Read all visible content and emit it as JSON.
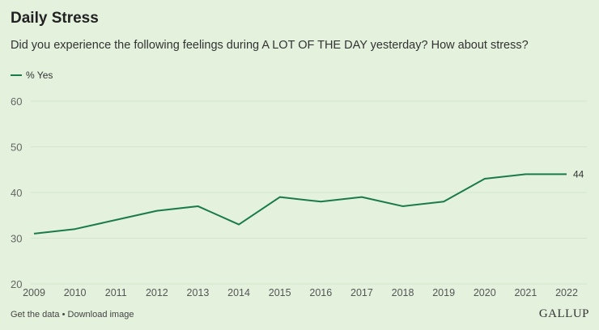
{
  "chart_data": {
    "type": "line",
    "title": "Daily Stress",
    "subtitle": "Did you experience the following feelings during A LOT OF THE DAY yesterday? How about stress?",
    "xlabel": "",
    "ylabel": "",
    "categories": [
      "2009",
      "2010",
      "2011",
      "2012",
      "2013",
      "2014",
      "2015",
      "2016",
      "2017",
      "2018",
      "2019",
      "2020",
      "2021",
      "2022"
    ],
    "series": [
      {
        "name": "% Yes",
        "values": [
          31,
          32,
          34,
          36,
          37,
          33,
          39,
          38,
          39,
          37,
          38,
          43,
          44,
          44
        ],
        "color": "#1a7a4a"
      }
    ],
    "yticks": [
      "20",
      "30",
      "40",
      "50",
      "60"
    ],
    "ylim": [
      20,
      60
    ],
    "grid": true,
    "legend": "top-left",
    "end_label": "44"
  },
  "footer": {
    "get_data": "Get the data",
    "separator": " • ",
    "download": "Download image"
  },
  "logo": "GALLUP"
}
